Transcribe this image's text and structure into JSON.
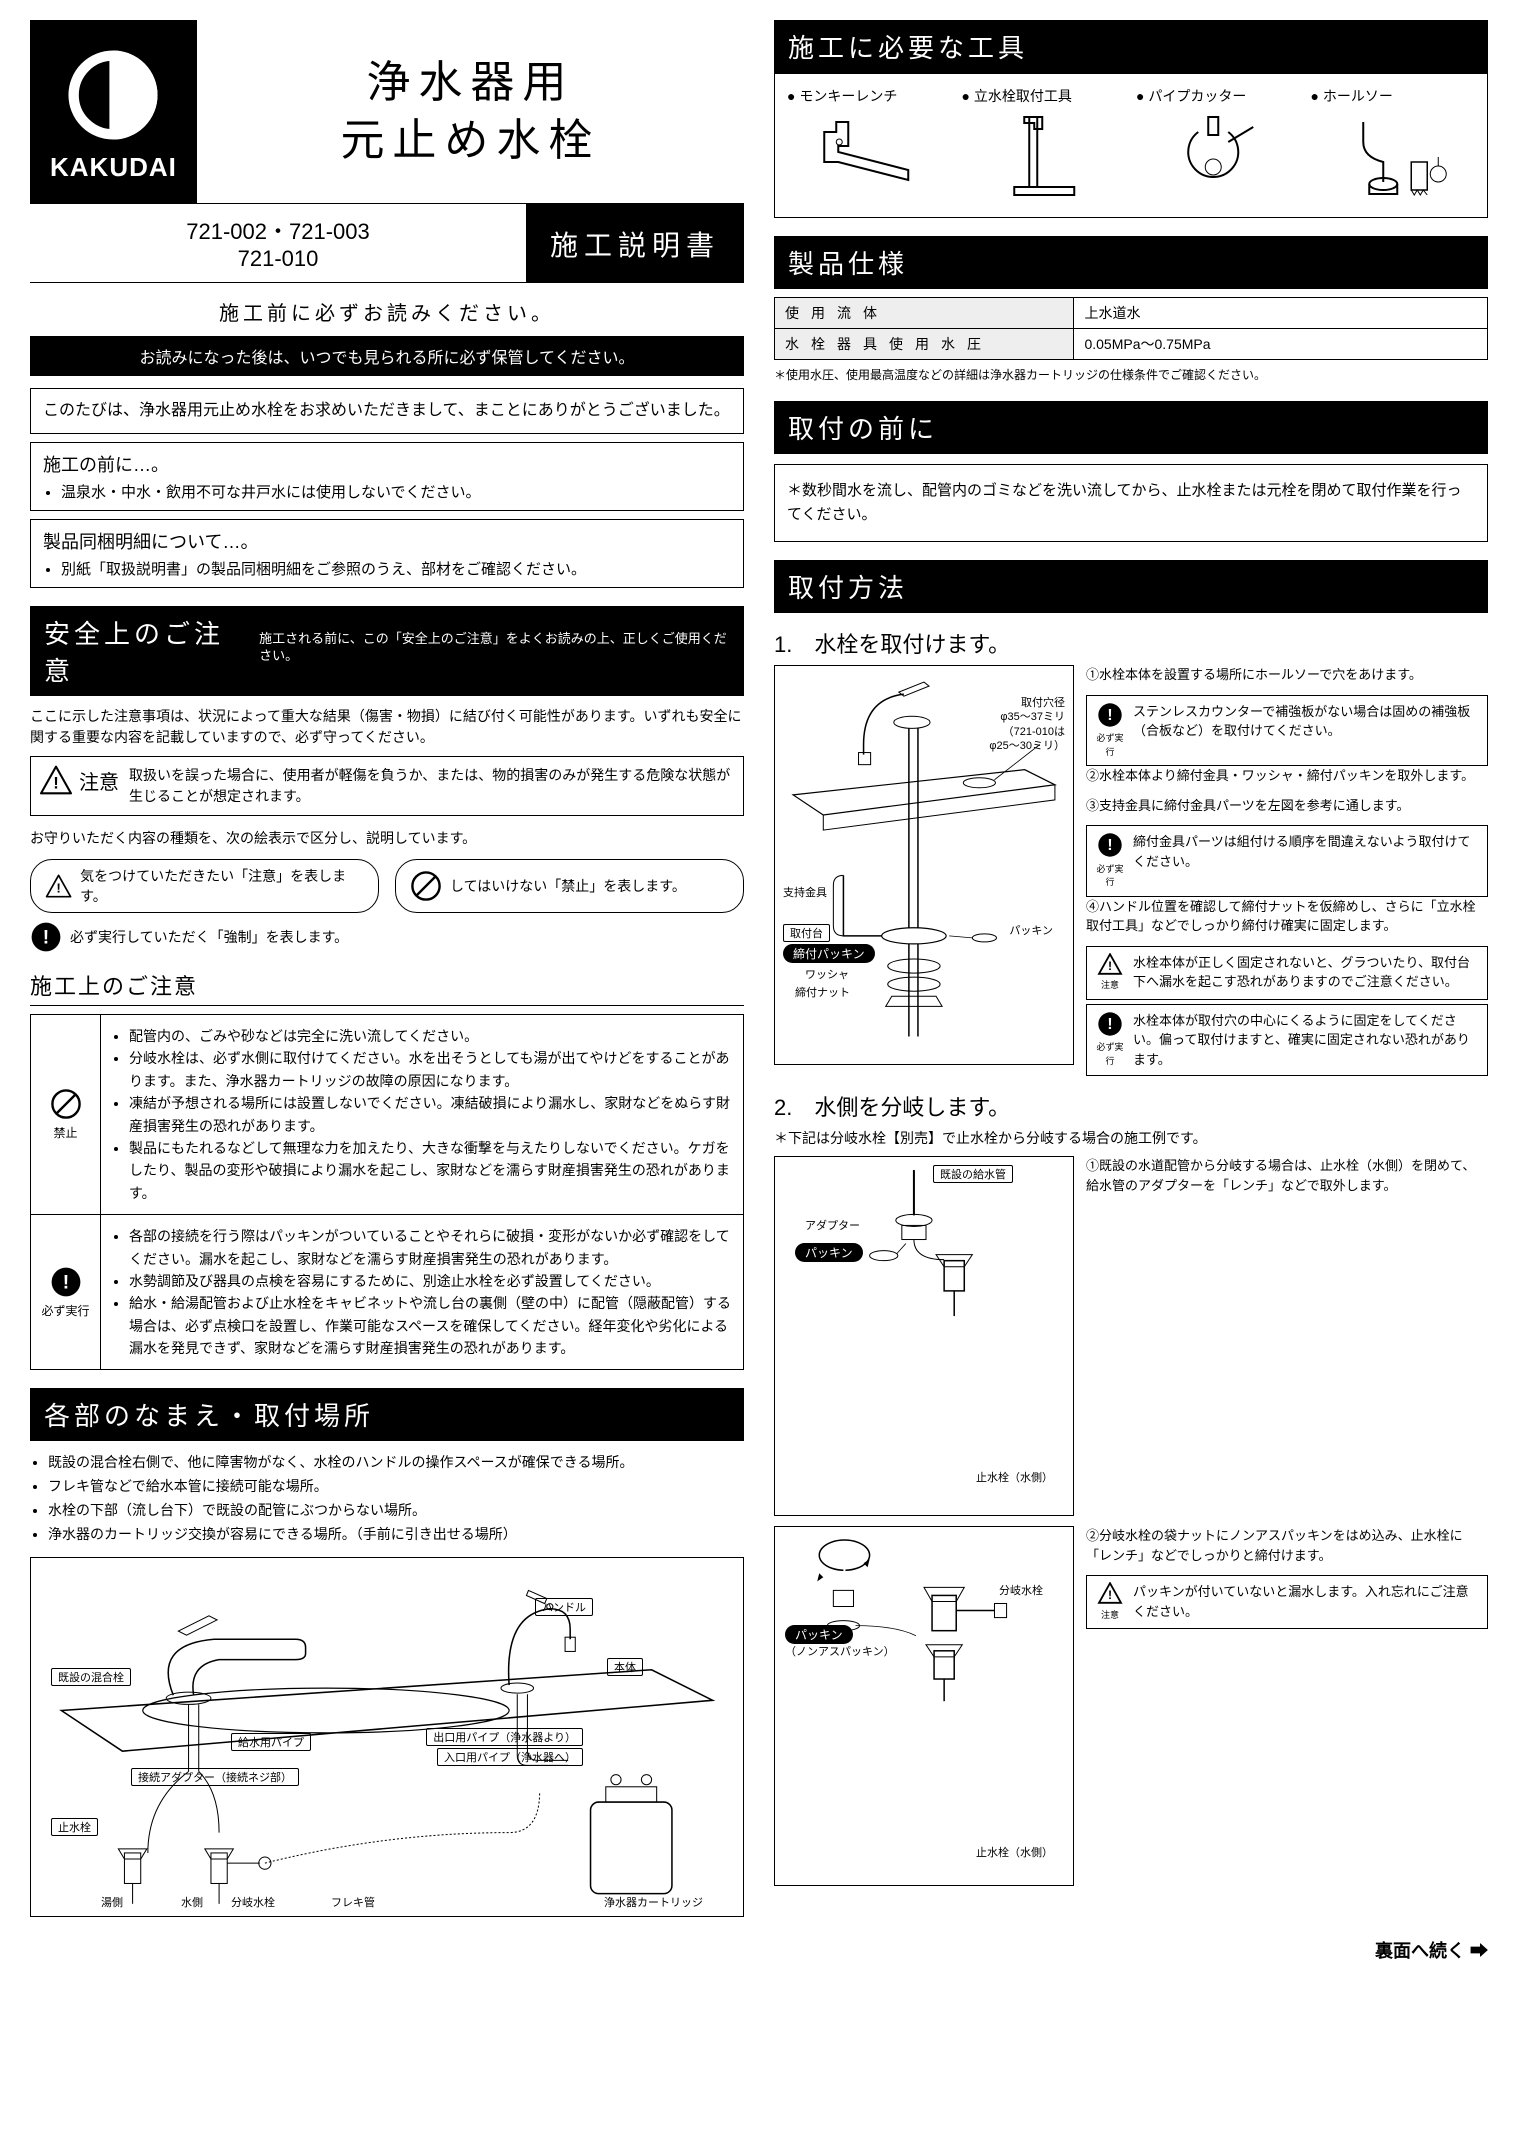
{
  "brand": "KAKUDAI",
  "main_title_l1": "浄水器用",
  "main_title_l2": "元止め水栓",
  "models_l1": "721-002・721-003",
  "models_l2": "721-010",
  "doc_type": "施工説明書",
  "read_before": "施工前に必ずお読みください。",
  "keep_note": "お読みになった後は、いつでも見られる所に必ず保管してください。",
  "thanks": "このたびは、浄水器用元止め水栓をお求めいただきまして、まことにありがとうございました。",
  "before_title": "施工の前に…。",
  "before_items": [
    "温泉水・中水・飲用不可な井戸水には使用しないでください。"
  ],
  "pkg_title": "製品同梱明細について…。",
  "pkg_items": [
    "別紙「取扱説明書」の製品同梱明細をご参照のうえ、部材をご確認ください。"
  ],
  "safety_header": "安全上のご注意",
  "safety_sub": "施工される前に、この「安全上のご注意」をよくお読みの上、正しくご使用ください。",
  "safety_intro": "ここに示した注意事項は、状況によって重大な結果（傷害・物損）に結び付く可能性があります。いずれも安全に関する重要な内容を記載していますので、必ず守ってください。",
  "caution_label": "注意",
  "caution_desc": "取扱いを誤った場合に、使用者が軽傷を負うか、または、物的損害のみが発生する危険な状態が生じることが想定されます。",
  "legend_intro": "お守りいただく内容の種類を、次の絵表示で区分し、説明しています。",
  "legend_caution": "気をつけていただきたい「注意」を表します。",
  "legend_prohibit": "してはいけない「禁止」を表します。",
  "legend_mandatory": "必ず実行していただく「強制」を表します。",
  "install_caution_title": "施工上のご注意",
  "prohibit_label": "禁止",
  "mandatory_label": "必ず実行",
  "prohibit_items": [
    "配管内の、ごみや砂などは完全に洗い流してください。",
    "分岐水栓は、必ず水側に取付けてください。水を出そうとしても湯が出てやけどをすることがあります。また、浄水器カートリッジの故障の原因になります。",
    "凍結が予想される場所には設置しないでください。凍結破損により漏水し、家財などをぬらす財産損害発生の恐れがあります。",
    "製品にもたれるなどして無理な力を加えたり、大きな衝撃を与えたりしないでください。ケガをしたり、製品の変形や破損により漏水を起こし、家財などを濡らす財産損害発生の恐れがあります。"
  ],
  "mandatory_items": [
    "各部の接続を行う際はパッキンがついていることやそれらに破損・変形がないか必ず確認をしてください。漏水を起こし、家財などを濡らす財産損害発生の恐れがあります。",
    "水勢調節及び器具の点検を容易にするために、別途止水栓を必ず設置してください。",
    "給水・給湯配管および止水栓をキャビネットや流し台の裏側（壁の中）に配管（隠蔽配管）する場合は、必ず点検口を設置し、作業可能なスペースを確保してください。経年変化や劣化による漏水を発見できず、家財などを濡らす財産損害発生の恐れがあります。"
  ],
  "parts_header": "各部のなまえ・取付場所",
  "parts_loc": [
    "既設の混合栓右側で、他に障害物がなく、水栓のハンドルの操作スペースが確保できる場所。",
    "フレキ管などで給水本管に接続可能な場所。",
    "水栓の下部（流し台下）で既設の配管にぶつからない場所。",
    "浄水器のカートリッジ交換が容易にできる場所。（手前に引き出せる場所）"
  ],
  "parts_labels": {
    "existing_mixer": "既設の混合栓",
    "handle": "ハンドル",
    "body": "本体",
    "supply_pipe": "給水用パイプ",
    "out_pipe": "出口用パイプ（浄水器より）",
    "in_pipe": "入口用パイプ（浄水器へ）",
    "adapter": "接続アダプター（接続ネジ部）",
    "stop_valve": "止水栓",
    "hot": "湯側",
    "cold": "水側",
    "branch": "分岐水栓",
    "flex": "フレキ管",
    "cartridge": "浄水器カートリッジ"
  },
  "tools_header": "施工に必要な工具",
  "tools": [
    "モンキーレンチ",
    "立水栓取付工具",
    "パイプカッター",
    "ホールソー"
  ],
  "spec_header": "製品仕様",
  "spec_rows": [
    [
      "使用流体",
      "上水道水"
    ],
    [
      "水栓器具使用水圧",
      "0.05MPa～0.75MPa"
    ]
  ],
  "spec_note": "＊使用水圧、使用最高温度などの詳細は浄水器カートリッジの仕様条件でご確認ください。",
  "preinstall_header": "取付の前に",
  "preinstall_text": "＊数秒間水を流し、配管内のゴミなどを洗い流してから、止水栓または元栓を閉めて取付作業を行ってください。",
  "method_header": "取付方法",
  "step1_title": "1.　水栓を取付けます。",
  "step1_diagram": {
    "hole": "取付穴径\nφ35～37ミリ\n（721-010は\nφ25～30ミリ）",
    "support": "支持金具",
    "mount": "取付台",
    "tight_packing": "締付パッキン",
    "washer": "ワッシャ",
    "nut": "締付ナット",
    "packing": "パッキン"
  },
  "step1_side": [
    {
      "num": "①",
      "text": "水栓本体を設置する場所にホールソーで穴をあけます。",
      "callout": {
        "icon": "mandatory",
        "label": "必ず実行",
        "text": "ステンレスカウンターで補強板がない場合は固めの補強板（合板など）を取付けてください。"
      }
    },
    {
      "num": "②",
      "text": "水栓本体より締付金具・ワッシャ・締付パッキンを取外します。"
    },
    {
      "num": "③",
      "text": "支持金具に締付金具パーツを左図を参考に通します。",
      "callout": {
        "icon": "mandatory",
        "label": "必ず実行",
        "text": "締付金具パーツは組付ける順序を間違えないよう取付けてください。"
      }
    },
    {
      "num": "④",
      "text": "ハンドル位置を確認して締付ナットを仮締めし、さらに「立水栓取付工具」などでしっかり締付け確実に固定します。",
      "callout": {
        "icon": "caution",
        "label": "注意",
        "text": "水栓本体が正しく固定されないと、グラついたり、取付台下へ漏水を起こす恐れがありますのでご注意ください。"
      },
      "callout2": {
        "icon": "mandatory",
        "label": "必ず実行",
        "text": "水栓本体が取付穴の中心にくるように固定をしてください。偏って取付けますと、確実に固定されない恐れがあります。"
      }
    }
  ],
  "step2_title": "2.　水側を分岐します。",
  "step2_note": "＊下記は分岐水栓【別売】で止水栓から分岐する場合の施工例です。",
  "step2_diag1": {
    "existing_pipe": "既設の給水管",
    "adapter": "アダプター",
    "packing": "パッキン",
    "stop_cold": "止水栓（水側）"
  },
  "step2_diag2": {
    "branch": "分岐水栓",
    "packing": "パッキン",
    "nonas": "（ノンアスパッキン）",
    "stop_cold": "止水栓（水側）"
  },
  "step2_side": [
    {
      "num": "①",
      "text": "既設の水道配管から分岐する場合は、止水栓（水側）を閉めて、給水管のアダプターを「レンチ」などで取外します。"
    },
    {
      "num": "②",
      "text": "分岐水栓の袋ナットにノンアスパッキンをはめ込み、止水栓に「レンチ」などでしっかりと締付けます。",
      "callout": {
        "icon": "caution",
        "label": "注意",
        "text": "パッキンが付いていないと漏水します。入れ忘れにご注意ください。"
      }
    }
  ],
  "footer": "裏面へ続く ➡",
  "colors": {
    "bg": "#ffffff",
    "fg": "#000000"
  }
}
